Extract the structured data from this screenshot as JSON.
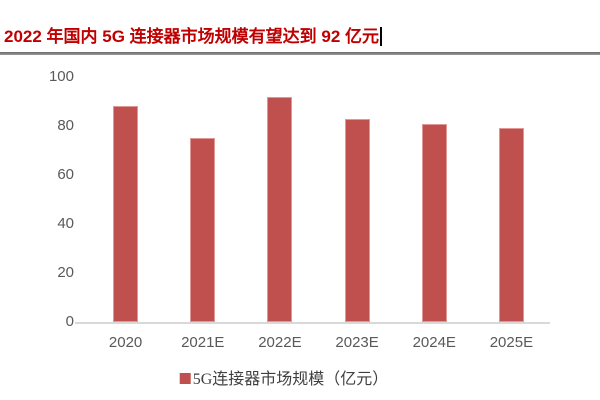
{
  "page": {
    "title": "2022 年国内 5G 连接器市场规模有望达到 92 亿元"
  },
  "colors": {
    "title": "#C00000",
    "bar": "#C0504D",
    "axis_label": "#595959",
    "axis_line": "#D9D9D9",
    "legend_text": "#3F3F3F"
  },
  "chart_data": {
    "type": "bar",
    "categories": [
      "2020",
      "2021E",
      "2022E",
      "2023E",
      "2024E",
      "2025E"
    ],
    "values": [
      88,
      75,
      92,
      83,
      81,
      79
    ],
    "series_name": "5G连接器市场规模（亿元）",
    "title": "",
    "xlabel": "",
    "ylabel": "",
    "ylim": [
      0,
      100
    ],
    "yticks": [
      0,
      20,
      40,
      60,
      80,
      100
    ],
    "grid": false,
    "legend_position": "bottom"
  },
  "legend": {
    "label": "5G连接器市场规模（亿元）"
  }
}
